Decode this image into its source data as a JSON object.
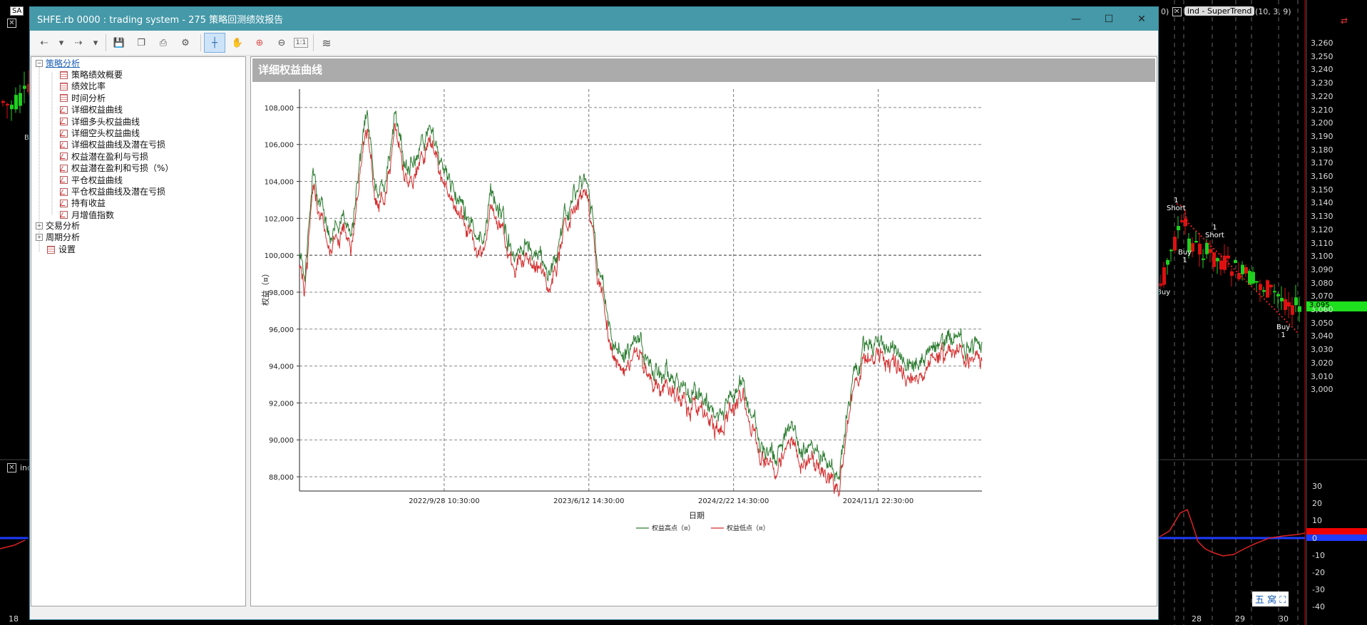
{
  "background": {
    "top_left_tag": "SA",
    "indicator_tag": "ind - SuperTrend",
    "indicator_params": "(10,  3,  9)",
    "partial_left_text": "0)",
    "lower_tag": "inc",
    "lower_tag_left": "inc",
    "price_labels": [
      "3,260",
      "3,250",
      "3,240",
      "3,230",
      "3,220",
      "3,210",
      "3,200",
      "3,190",
      "3,180",
      "3,170",
      "3,160",
      "3,150",
      "3,140",
      "3,130",
      "3,120",
      "3,110",
      "3,100",
      "3,090",
      "3,080",
      "3,070",
      "3,060",
      "3,050",
      "3,040",
      "3,030",
      "3,020",
      "3,010",
      "3,000"
    ],
    "current_price": "3,095",
    "lower_labels": [
      "30",
      "20",
      "10",
      "0",
      "-10",
      "-20",
      "-30",
      "-40"
    ],
    "date_labels": [
      "18",
      "28",
      "29",
      "30"
    ],
    "signals": [
      {
        "line1": "1",
        "line2": "Short"
      },
      {
        "line1": "1",
        "line2": "Short"
      },
      {
        "line1": "Buy",
        "line2": "1"
      },
      {
        "line1": "Buy",
        "line2": ""
      },
      {
        "line1": "Buy",
        "line2": "1"
      }
    ],
    "left_label": "B",
    "bottom_icons": "五 窝 ⛶"
  },
  "window": {
    "title": "SHFE.rb 0000 : trading system - 275 策略回测绩效报告",
    "minimize": "—",
    "maximize": "☐",
    "close": "✕"
  },
  "toolbar": {
    "back_icon": "⇠",
    "dropdown_icon": "▾",
    "forward_icon": "⇢",
    "save_icon": "💾",
    "copy_icon": "❐",
    "print_icon": "⎙",
    "settings_icon": "⚙",
    "crosshair_icon": "┼",
    "pan_icon": "✋",
    "zoom_in_icon": "⊕",
    "zoom_out_icon": "⊖",
    "zoom_reset_label": "1:1",
    "chart_style_icon": "≋"
  },
  "tree": {
    "root": "策略分析",
    "children": [
      "策略绩效概要",
      "绩效比率",
      "时间分析",
      "详细权益曲线",
      "详细多头权益曲线",
      "详细空头权益曲线",
      "详细权益曲线及潜在亏损",
      "权益潜在盈利与亏损",
      "权益潜在盈利和亏损（%）",
      "平仓权益曲线",
      "平仓权益曲线及潜在亏损",
      "持有收益",
      "月增值指数"
    ],
    "others": [
      "交易分析",
      "周期分析"
    ],
    "settings": "设置"
  },
  "panel": {
    "header": "详细权益曲线"
  },
  "chart_data": {
    "type": "line",
    "ylabel": "权益（¤）",
    "xlabel": "日期",
    "y_ticks": [
      88000,
      90000,
      92000,
      94000,
      96000,
      98000,
      100000,
      102000,
      104000,
      106000,
      108000
    ],
    "y_tick_labels": [
      "88,000",
      "90,000",
      "92,000",
      "94,000",
      "96,000",
      "98,000",
      "100,000",
      "102,000",
      "104,000",
      "106,000",
      "108,000"
    ],
    "ylim": [
      87500,
      109000
    ],
    "x_tick_labels": [
      "2022/9/28 10:30:00",
      "2023/6/12 14:30:00",
      "2024/2/22 14:30:00",
      "2024/11/1 22:30:00"
    ],
    "x_tick_positions": [
      0.212,
      0.424,
      0.636,
      0.848
    ],
    "baseline": 100000,
    "grid": true,
    "legend_position": "bottom-center",
    "series": [
      {
        "name": "权益高点（¤）",
        "color": "#2e7d32"
      },
      {
        "name": "权益低点（¤）",
        "color": "#d32f2f"
      }
    ],
    "profile": [
      [
        0.0,
        100000
      ],
      [
        0.008,
        98500
      ],
      [
        0.02,
        104500
      ],
      [
        0.03,
        102000
      ],
      [
        0.045,
        101000
      ],
      [
        0.06,
        101500
      ],
      [
        0.075,
        100300
      ],
      [
        0.09,
        105500
      ],
      [
        0.1,
        107200
      ],
      [
        0.11,
        104000
      ],
      [
        0.125,
        103200
      ],
      [
        0.14,
        107000
      ],
      [
        0.16,
        103800
      ],
      [
        0.175,
        105500
      ],
      [
        0.19,
        106300
      ],
      [
        0.205,
        105000
      ],
      [
        0.22,
        103500
      ],
      [
        0.24,
        101700
      ],
      [
        0.26,
        101200
      ],
      [
        0.27,
        100800
      ],
      [
        0.28,
        103300
      ],
      [
        0.295,
        102100
      ],
      [
        0.31,
        100200
      ],
      [
        0.33,
        100700
      ],
      [
        0.35,
        99400
      ],
      [
        0.37,
        99000
      ],
      [
        0.39,
        101800
      ],
      [
        0.41,
        103500
      ],
      [
        0.42,
        103200
      ],
      [
        0.43,
        101000
      ],
      [
        0.445,
        97500
      ],
      [
        0.46,
        95000
      ],
      [
        0.48,
        94300
      ],
      [
        0.5,
        94400
      ],
      [
        0.52,
        93600
      ],
      [
        0.54,
        92800
      ],
      [
        0.56,
        92300
      ],
      [
        0.58,
        91900
      ],
      [
        0.6,
        91400
      ],
      [
        0.62,
        90900
      ],
      [
        0.636,
        92000
      ],
      [
        0.65,
        92800
      ],
      [
        0.66,
        91000
      ],
      [
        0.68,
        89000
      ],
      [
        0.7,
        88700
      ],
      [
        0.72,
        89900
      ],
      [
        0.74,
        89300
      ],
      [
        0.76,
        88300
      ],
      [
        0.79,
        88000
      ],
      [
        0.81,
        93000
      ],
      [
        0.83,
        94800
      ],
      [
        0.86,
        94900
      ],
      [
        0.88,
        94200
      ],
      [
        0.9,
        93600
      ],
      [
        0.92,
        94000
      ],
      [
        0.94,
        94700
      ],
      [
        0.96,
        95100
      ],
      [
        0.98,
        94800
      ],
      [
        1.0,
        94600
      ]
    ],
    "noise_amplitude": 700
  }
}
